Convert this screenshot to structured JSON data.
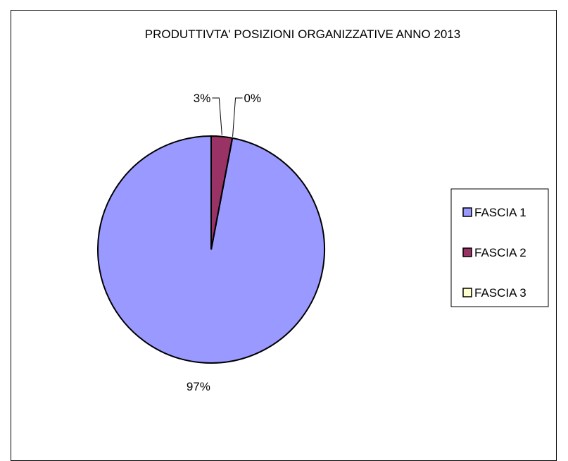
{
  "chart_data": {
    "type": "pie",
    "title": "PRODUTTIVTA' POSIZIONI ORGANIZZATIVE ANNO 2013",
    "categories": [
      "FASCIA 1",
      "FASCIA 2",
      "FASCIA 3"
    ],
    "values": [
      97,
      3,
      0
    ],
    "data_labels": [
      "97%",
      "3%",
      "0%"
    ],
    "colors": [
      "#9999FF",
      "#993366",
      "#FFFFCC"
    ],
    "legend_position": "right"
  }
}
